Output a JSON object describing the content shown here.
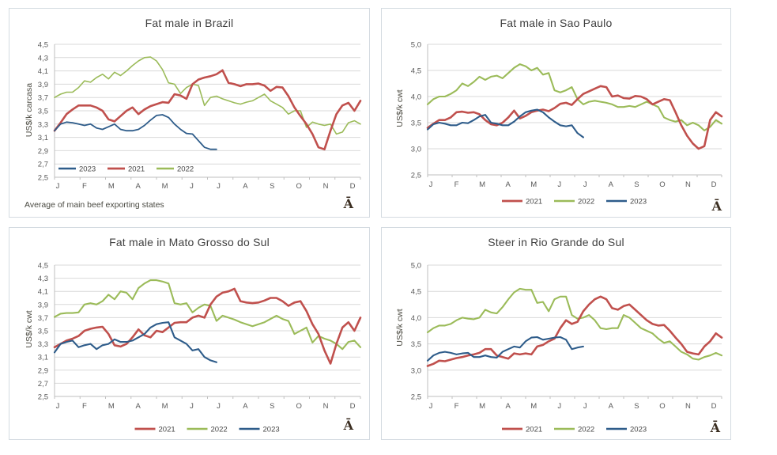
{
  "page": {
    "background": "#ffffff"
  },
  "months": [
    "J",
    "F",
    "M",
    "A",
    "M",
    "J",
    "J",
    "A",
    "S",
    "O",
    "N",
    "D"
  ],
  "colors": {
    "y2021": "#C0504D",
    "y2022": "#9BBB59",
    "y2023": "#2E5C8A",
    "grid": "#d9d9d9",
    "axis": "#bfbfbf",
    "tick_text": "#595959"
  },
  "chart_data": {
    "type": "line",
    "x_unit": "weekly points, January through December",
    "months": [
      "J",
      "F",
      "M",
      "A",
      "M",
      "J",
      "J",
      "A",
      "S",
      "O",
      "N",
      "D"
    ],
    "charts": [
      {
        "title": "Fat male in Brazil",
        "y_axis_label": "US$/k carcasa",
        "footnote": "Average  of main beef exporting states",
        "corner_glyph": "Ā",
        "ylim": [
          2.5,
          4.5
        ],
        "ytick_step": 0.2,
        "ytick_labels": [
          "4,5",
          "4,3",
          "4,1",
          "3,9",
          "3,7",
          "3,5",
          "3,3",
          "3,1",
          "2,9",
          "2,7",
          "2,5"
        ],
        "legend_position": "inside-bottom-left",
        "legend_order": [
          "2023",
          "2021",
          "2022"
        ],
        "series": [
          {
            "name": "2021",
            "color": "#C0504D",
            "values": [
              3.2,
              3.32,
              3.45,
              3.52,
              3.58,
              3.58,
              3.58,
              3.55,
              3.5,
              3.37,
              3.34,
              3.42,
              3.5,
              3.55,
              3.45,
              3.52,
              3.57,
              3.6,
              3.63,
              3.62,
              3.75,
              3.73,
              3.68,
              3.9,
              3.97,
              4.0,
              4.02,
              4.05,
              4.11,
              3.92,
              3.9,
              3.87,
              3.9,
              3.9,
              3.91,
              3.88,
              3.8,
              3.86,
              3.85,
              3.72,
              3.55,
              3.42,
              3.3,
              3.15,
              2.95,
              2.92,
              3.2,
              3.45,
              3.58,
              3.62,
              3.5,
              3.65
            ]
          },
          {
            "name": "2022",
            "color": "#9BBB59",
            "values": [
              3.7,
              3.75,
              3.78,
              3.78,
              3.85,
              3.95,
              3.93,
              4.0,
              4.05,
              3.98,
              4.08,
              4.03,
              4.1,
              4.18,
              4.25,
              4.3,
              4.31,
              4.25,
              4.12,
              3.92,
              3.9,
              3.76,
              3.85,
              3.9,
              3.88,
              3.58,
              3.7,
              3.72,
              3.68,
              3.65,
              3.62,
              3.6,
              3.63,
              3.65,
              3.7,
              3.75,
              3.65,
              3.6,
              3.55,
              3.45,
              3.5,
              3.5,
              3.25,
              3.33,
              3.3,
              3.28,
              3.3,
              3.15,
              3.18,
              3.32,
              3.35,
              3.3
            ]
          },
          {
            "name": "2023",
            "color": "#2E5C8A",
            "values": [
              3.2,
              3.3,
              3.33,
              3.32,
              3.3,
              3.28,
              3.3,
              3.24,
              3.22,
              3.26,
              3.3,
              3.22,
              3.2,
              3.2,
              3.22,
              3.28,
              3.36,
              3.43,
              3.44,
              3.4,
              3.3,
              3.22,
              3.16,
              3.15,
              3.05,
              2.95,
              2.92,
              2.92
            ]
          }
        ]
      },
      {
        "title": "Fat male in Sao Paulo",
        "y_axis_label": "US$/k cwt",
        "corner_glyph": "Ā",
        "ylim": [
          2.5,
          5.0
        ],
        "ytick_step": 0.5,
        "ytick_labels": [
          "5,0",
          "4,5",
          "4,0",
          "3,5",
          "3,0",
          "2,5"
        ],
        "legend_position": "below-center",
        "legend_order": [
          "2021",
          "2022",
          "2023"
        ],
        "series": [
          {
            "name": "2021",
            "color": "#C0504D",
            "values": [
              3.4,
              3.48,
              3.55,
              3.55,
              3.6,
              3.7,
              3.71,
              3.69,
              3.7,
              3.66,
              3.55,
              3.47,
              3.45,
              3.5,
              3.6,
              3.73,
              3.58,
              3.63,
              3.7,
              3.73,
              3.75,
              3.72,
              3.78,
              3.86,
              3.88,
              3.84,
              3.95,
              4.05,
              4.1,
              4.15,
              4.2,
              4.18,
              4.0,
              4.02,
              3.97,
              3.96,
              4.01,
              4.0,
              3.95,
              3.85,
              3.9,
              3.95,
              3.93,
              3.7,
              3.45,
              3.25,
              3.1,
              3.0,
              3.05,
              3.55,
              3.7,
              3.62
            ]
          },
          {
            "name": "2022",
            "color": "#9BBB59",
            "values": [
              3.85,
              3.95,
              4.0,
              4.0,
              4.05,
              4.12,
              4.25,
              4.2,
              4.28,
              4.38,
              4.32,
              4.38,
              4.4,
              4.35,
              4.45,
              4.55,
              4.62,
              4.58,
              4.5,
              4.55,
              4.42,
              4.45,
              4.12,
              4.08,
              4.12,
              4.18,
              3.95,
              3.85,
              3.9,
              3.92,
              3.9,
              3.88,
              3.85,
              3.8,
              3.8,
              3.82,
              3.8,
              3.85,
              3.9,
              3.85,
              3.8,
              3.6,
              3.55,
              3.52,
              3.55,
              3.45,
              3.5,
              3.45,
              3.35,
              3.42,
              3.55,
              3.48
            ]
          },
          {
            "name": "2023",
            "color": "#2E5C8A",
            "values": [
              3.37,
              3.47,
              3.5,
              3.48,
              3.45,
              3.45,
              3.5,
              3.49,
              3.55,
              3.62,
              3.65,
              3.5,
              3.48,
              3.45,
              3.45,
              3.52,
              3.62,
              3.7,
              3.73,
              3.75,
              3.7,
              3.6,
              3.52,
              3.45,
              3.43,
              3.45,
              3.3,
              3.22
            ]
          }
        ]
      },
      {
        "title": "Fat male in Mato Grosso do Sul",
        "y_axis_label": "US$/k  cwt",
        "corner_glyph": "Ā",
        "ylim": [
          2.5,
          4.5
        ],
        "ytick_step": 0.2,
        "ytick_labels": [
          "4,5",
          "4,3",
          "4,1",
          "3,9",
          "3,7",
          "3,5",
          "3,3",
          "3,1",
          "2,9",
          "2,7",
          "2,5"
        ],
        "legend_position": "below-center",
        "legend_order": [
          "2021",
          "2022",
          "2023"
        ],
        "series": [
          {
            "name": "2021",
            "color": "#C0504D",
            "values": [
              3.25,
              3.3,
              3.35,
              3.38,
              3.42,
              3.5,
              3.53,
              3.55,
              3.56,
              3.45,
              3.28,
              3.26,
              3.3,
              3.4,
              3.52,
              3.43,
              3.4,
              3.5,
              3.48,
              3.55,
              3.62,
              3.63,
              3.63,
              3.7,
              3.73,
              3.7,
              3.9,
              4.02,
              4.08,
              4.1,
              4.14,
              3.95,
              3.93,
              3.92,
              3.93,
              3.96,
              4.0,
              4.0,
              3.95,
              3.88,
              3.93,
              3.95,
              3.8,
              3.6,
              3.45,
              3.2,
              3.0,
              3.3,
              3.55,
              3.63,
              3.5,
              3.7
            ]
          },
          {
            "name": "2022",
            "color": "#9BBB59",
            "values": [
              3.71,
              3.76,
              3.77,
              3.77,
              3.78,
              3.9,
              3.92,
              3.9,
              3.95,
              4.05,
              3.98,
              4.1,
              4.08,
              3.98,
              4.15,
              4.22,
              4.27,
              4.27,
              4.25,
              4.22,
              3.92,
              3.9,
              3.92,
              3.78,
              3.85,
              3.9,
              3.88,
              3.65,
              3.73,
              3.7,
              3.67,
              3.63,
              3.6,
              3.57,
              3.6,
              3.63,
              3.68,
              3.73,
              3.68,
              3.65,
              3.45,
              3.5,
              3.55,
              3.32,
              3.42,
              3.38,
              3.35,
              3.3,
              3.22,
              3.33,
              3.35,
              3.25
            ]
          },
          {
            "name": "2023",
            "color": "#2E5C8A",
            "values": [
              3.17,
              3.3,
              3.33,
              3.35,
              3.25,
              3.28,
              3.3,
              3.22,
              3.28,
              3.3,
              3.37,
              3.33,
              3.33,
              3.35,
              3.4,
              3.45,
              3.55,
              3.6,
              3.62,
              3.63,
              3.4,
              3.35,
              3.3,
              3.2,
              3.22,
              3.1,
              3.05,
              3.02
            ]
          }
        ]
      },
      {
        "title": "Steer  in Rio Grande do Sul",
        "y_axis_label": "US$/k  cwt",
        "corner_glyph": "Ā",
        "ylim": [
          2.5,
          5.0
        ],
        "ytick_step": 0.5,
        "ytick_labels": [
          "5,0",
          "4,5",
          "4,0",
          "3,5",
          "3,0",
          "2,5"
        ],
        "legend_position": "below-center",
        "legend_order": [
          "2021",
          "2022",
          "2023"
        ],
        "series": [
          {
            "name": "2021",
            "color": "#C0504D",
            "values": [
              3.08,
              3.12,
              3.18,
              3.17,
              3.2,
              3.23,
              3.25,
              3.28,
              3.3,
              3.33,
              3.4,
              3.4,
              3.28,
              3.25,
              3.22,
              3.32,
              3.3,
              3.32,
              3.3,
              3.45,
              3.48,
              3.55,
              3.6,
              3.8,
              3.95,
              3.88,
              3.92,
              4.12,
              4.25,
              4.35,
              4.4,
              4.35,
              4.18,
              4.15,
              4.22,
              4.25,
              4.15,
              4.05,
              3.95,
              3.88,
              3.85,
              3.86,
              3.75,
              3.62,
              3.5,
              3.35,
              3.32,
              3.3,
              3.45,
              3.55,
              3.7,
              3.62
            ]
          },
          {
            "name": "2022",
            "color": "#9BBB59",
            "values": [
              3.72,
              3.8,
              3.85,
              3.85,
              3.88,
              3.95,
              4.0,
              3.98,
              3.97,
              4.0,
              4.15,
              4.1,
              4.08,
              4.2,
              4.35,
              4.48,
              4.55,
              4.53,
              4.53,
              4.28,
              4.3,
              4.12,
              4.35,
              4.4,
              4.4,
              4.05,
              3.98,
              4.0,
              4.05,
              3.95,
              3.8,
              3.78,
              3.8,
              3.8,
              4.05,
              4.0,
              3.9,
              3.8,
              3.75,
              3.7,
              3.6,
              3.52,
              3.55,
              3.45,
              3.35,
              3.3,
              3.22,
              3.2,
              3.25,
              3.28,
              3.33,
              3.28
            ]
          },
          {
            "name": "2023",
            "color": "#2E5C8A",
            "values": [
              3.18,
              3.28,
              3.33,
              3.35,
              3.33,
              3.3,
              3.32,
              3.33,
              3.25,
              3.25,
              3.28,
              3.25,
              3.24,
              3.35,
              3.4,
              3.45,
              3.43,
              3.55,
              3.62,
              3.63,
              3.58,
              3.6,
              3.62,
              3.63,
              3.58,
              3.4,
              3.43,
              3.45
            ]
          }
        ]
      }
    ]
  }
}
